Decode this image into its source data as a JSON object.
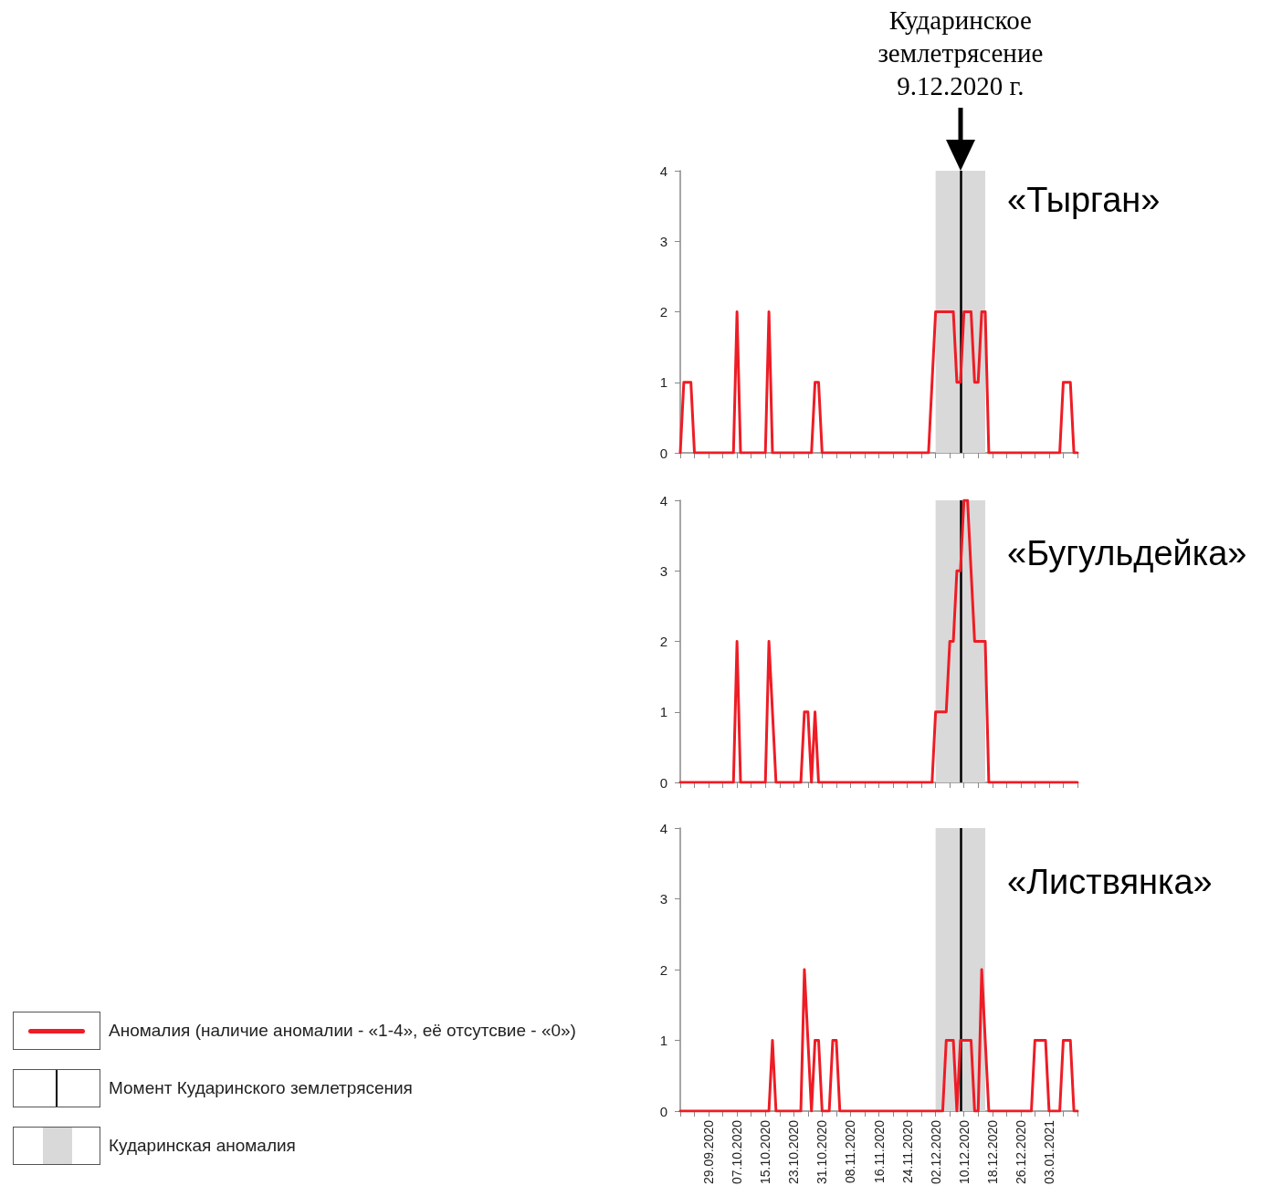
{
  "chart_data": [
    {
      "type": "line",
      "title": "«Тырган»",
      "x": [
        "2020-09-21",
        "2020-09-22",
        "2020-09-23",
        "2020-09-24",
        "2020-09-25",
        "2020-09-26",
        "2020-09-27",
        "2020-09-28",
        "2020-09-29",
        "2020-09-30",
        "2020-10-01",
        "2020-10-02",
        "2020-10-03",
        "2020-10-04",
        "2020-10-05",
        "2020-10-06",
        "2020-10-07",
        "2020-10-08",
        "2020-10-09",
        "2020-10-10",
        "2020-10-11",
        "2020-10-12",
        "2020-10-13",
        "2020-10-14",
        "2020-10-15",
        "2020-10-16",
        "2020-10-17",
        "2020-10-18",
        "2020-10-19",
        "2020-10-20",
        "2020-10-21",
        "2020-10-22",
        "2020-10-23",
        "2020-10-24",
        "2020-10-25",
        "2020-10-26",
        "2020-10-27",
        "2020-10-28",
        "2020-10-29",
        "2020-10-30",
        "2020-10-31",
        "2020-11-01",
        "2020-11-02",
        "2020-11-03",
        "2020-11-04",
        "2020-11-05",
        "2020-11-06",
        "2020-11-07",
        "2020-11-08",
        "2020-11-09",
        "2020-11-10",
        "2020-11-11",
        "2020-11-12",
        "2020-11-13",
        "2020-11-14",
        "2020-11-15",
        "2020-11-16",
        "2020-11-17",
        "2020-11-18",
        "2020-11-19",
        "2020-11-20",
        "2020-11-21",
        "2020-11-22",
        "2020-11-23",
        "2020-11-24",
        "2020-11-25",
        "2020-11-26",
        "2020-11-27",
        "2020-11-28",
        "2020-11-29",
        "2020-11-30",
        "2020-12-01",
        "2020-12-02",
        "2020-12-03",
        "2020-12-04",
        "2020-12-05",
        "2020-12-06",
        "2020-12-07",
        "2020-12-08",
        "2020-12-09",
        "2020-12-10",
        "2020-12-11",
        "2020-12-12",
        "2020-12-13",
        "2020-12-14",
        "2020-12-15",
        "2020-12-16",
        "2020-12-17",
        "2020-12-18",
        "2020-12-19",
        "2020-12-20",
        "2020-12-21",
        "2020-12-22",
        "2020-12-23",
        "2020-12-24",
        "2020-12-25",
        "2020-12-26",
        "2020-12-27",
        "2020-12-28",
        "2020-12-29",
        "2020-12-30",
        "2020-12-31",
        "2021-01-01",
        "2021-01-02",
        "2021-01-03",
        "2021-01-04",
        "2021-01-05",
        "2021-01-06",
        "2021-01-07",
        "2021-01-08",
        "2021-01-09",
        "2021-01-10",
        "2021-01-11"
      ],
      "series": [
        {
          "color": "#ee1c25",
          "values": [
            0,
            1,
            1,
            1,
            0,
            0,
            0,
            0,
            0,
            0,
            0,
            0,
            0,
            0,
            0,
            0,
            2,
            0,
            0,
            0,
            0,
            0,
            0,
            0,
            0,
            2,
            0,
            0,
            0,
            0,
            0,
            0,
            0,
            0,
            0,
            0,
            0,
            0,
            1,
            1,
            0,
            0,
            0,
            0,
            0,
            0,
            0,
            0,
            0,
            0,
            0,
            0,
            0,
            0,
            0,
            0,
            0,
            0,
            0,
            0,
            0,
            0,
            0,
            0,
            0,
            0,
            0,
            0,
            0,
            0,
            0,
            1,
            2,
            2,
            2,
            2,
            2,
            2,
            1,
            1,
            2,
            2,
            2,
            1,
            1,
            2,
            2,
            0,
            0,
            0,
            0,
            0,
            0,
            0,
            0,
            0,
            0,
            0,
            0,
            0,
            0,
            0,
            0,
            0,
            0,
            0,
            0,
            0,
            1,
            1,
            1,
            0,
            0
          ]
        }
      ],
      "xlim": [
        "2020-09-21",
        "2021-01-11"
      ],
      "xticks": [
        {
          "value": "2020-09-21",
          "label": null
        },
        {
          "value": "2020-09-25",
          "label": null
        },
        {
          "value": "2020-09-29",
          "label": null
        },
        {
          "value": "2020-10-03",
          "label": null
        },
        {
          "value": "2020-10-07",
          "label": null
        },
        {
          "value": "2020-10-11",
          "label": null
        },
        {
          "value": "2020-10-15",
          "label": null
        },
        {
          "value": "2020-10-19",
          "label": null
        },
        {
          "value": "2020-10-23",
          "label": null
        },
        {
          "value": "2020-10-27",
          "label": null
        },
        {
          "value": "2020-10-31",
          "label": null
        },
        {
          "value": "2020-11-04",
          "label": null
        },
        {
          "value": "2020-11-08",
          "label": null
        },
        {
          "value": "2020-11-12",
          "label": null
        },
        {
          "value": "2020-11-16",
          "label": null
        },
        {
          "value": "2020-11-20",
          "label": null
        },
        {
          "value": "2020-11-24",
          "label": null
        },
        {
          "value": "2020-11-28",
          "label": null
        },
        {
          "value": "2020-12-02",
          "label": null
        },
        {
          "value": "2020-12-06",
          "label": null
        },
        {
          "value": "2020-12-10",
          "label": null
        },
        {
          "value": "2020-12-14",
          "label": null
        },
        {
          "value": "2020-12-18",
          "label": null
        },
        {
          "value": "2020-12-22",
          "label": null
        },
        {
          "value": "2020-12-26",
          "label": null
        },
        {
          "value": "2020-12-30",
          "label": null
        },
        {
          "value": "2021-01-03",
          "label": null
        },
        {
          "value": "2021-01-07",
          "label": null
        },
        {
          "value": "2021-01-11",
          "label": null
        }
      ],
      "ylim": [
        0,
        4
      ],
      "yticks": [
        0,
        1,
        2,
        3,
        4
      ],
      "tick_labels": "y",
      "grid": false,
      "legend": false,
      "marker": "none",
      "line_style": "solid",
      "bands": [
        {
          "axis": "x",
          "from": "2020-12-02",
          "to": "2020-12-16",
          "color": "#d9d9d9"
        }
      ],
      "ref_lines": [
        {
          "axis": "x",
          "value": "2020-12-09",
          "color": "#000000"
        }
      ],
      "annotations": [
        {
          "text": "Кударинское землетрясение 9.12.2020 г.",
          "x": "2020-12-09",
          "y": 4
        }
      ]
    },
    {
      "type": "line",
      "title": "«Бугульдейка»",
      "x": [
        "2020-09-21",
        "2020-09-22",
        "2020-09-23",
        "2020-09-24",
        "2020-09-25",
        "2020-09-26",
        "2020-09-27",
        "2020-09-28",
        "2020-09-29",
        "2020-09-30",
        "2020-10-01",
        "2020-10-02",
        "2020-10-03",
        "2020-10-04",
        "2020-10-05",
        "2020-10-06",
        "2020-10-07",
        "2020-10-08",
        "2020-10-09",
        "2020-10-10",
        "2020-10-11",
        "2020-10-12",
        "2020-10-13",
        "2020-10-14",
        "2020-10-15",
        "2020-10-16",
        "2020-10-17",
        "2020-10-18",
        "2020-10-19",
        "2020-10-20",
        "2020-10-21",
        "2020-10-22",
        "2020-10-23",
        "2020-10-24",
        "2020-10-25",
        "2020-10-26",
        "2020-10-27",
        "2020-10-28",
        "2020-10-29",
        "2020-10-30",
        "2020-10-31",
        "2020-11-01",
        "2020-11-02",
        "2020-11-03",
        "2020-11-04",
        "2020-11-05",
        "2020-11-06",
        "2020-11-07",
        "2020-11-08",
        "2020-11-09",
        "2020-11-10",
        "2020-11-11",
        "2020-11-12",
        "2020-11-13",
        "2020-11-14",
        "2020-11-15",
        "2020-11-16",
        "2020-11-17",
        "2020-11-18",
        "2020-11-19",
        "2020-11-20",
        "2020-11-21",
        "2020-11-22",
        "2020-11-23",
        "2020-11-24",
        "2020-11-25",
        "2020-11-26",
        "2020-11-27",
        "2020-11-28",
        "2020-11-29",
        "2020-11-30",
        "2020-12-01",
        "2020-12-02",
        "2020-12-03",
        "2020-12-04",
        "2020-12-05",
        "2020-12-06",
        "2020-12-07",
        "2020-12-08",
        "2020-12-09",
        "2020-12-10",
        "2020-12-11",
        "2020-12-12",
        "2020-12-13",
        "2020-12-14",
        "2020-12-15",
        "2020-12-16",
        "2020-12-17",
        "2020-12-18",
        "2020-12-19",
        "2020-12-20",
        "2020-12-21",
        "2020-12-22",
        "2020-12-23",
        "2020-12-24",
        "2020-12-25",
        "2020-12-26",
        "2020-12-27",
        "2020-12-28",
        "2020-12-29",
        "2020-12-30",
        "2020-12-31",
        "2021-01-01",
        "2021-01-02",
        "2021-01-03",
        "2021-01-04",
        "2021-01-05",
        "2021-01-06",
        "2021-01-07",
        "2021-01-08",
        "2021-01-09",
        "2021-01-10",
        "2021-01-11"
      ],
      "series": [
        {
          "color": "#ee1c25",
          "values": [
            0,
            0,
            0,
            0,
            0,
            0,
            0,
            0,
            0,
            0,
            0,
            0,
            0,
            0,
            0,
            0,
            2,
            0,
            0,
            0,
            0,
            0,
            0,
            0,
            0,
            2,
            1,
            0,
            0,
            0,
            0,
            0,
            0,
            0,
            0,
            1,
            1,
            0,
            1,
            0,
            0,
            0,
            0,
            0,
            0,
            0,
            0,
            0,
            0,
            0,
            0,
            0,
            0,
            0,
            0,
            0,
            0,
            0,
            0,
            0,
            0,
            0,
            0,
            0,
            0,
            0,
            0,
            0,
            0,
            0,
            0,
            0,
            1,
            1,
            1,
            1,
            2,
            2,
            3,
            3,
            4,
            4,
            3,
            2,
            2,
            2,
            2,
            0,
            0,
            0,
            0,
            0,
            0,
            0,
            0,
            0,
            0,
            0,
            0,
            0,
            0,
            0,
            0,
            0,
            0,
            0,
            0,
            0,
            0,
            0,
            0,
            0,
            0
          ]
        }
      ],
      "xlim": [
        "2020-09-21",
        "2021-01-11"
      ],
      "xticks": [
        {
          "value": "2020-09-21",
          "label": null
        },
        {
          "value": "2020-09-25",
          "label": null
        },
        {
          "value": "2020-09-29",
          "label": null
        },
        {
          "value": "2020-10-03",
          "label": null
        },
        {
          "value": "2020-10-07",
          "label": null
        },
        {
          "value": "2020-10-11",
          "label": null
        },
        {
          "value": "2020-10-15",
          "label": null
        },
        {
          "value": "2020-10-19",
          "label": null
        },
        {
          "value": "2020-10-23",
          "label": null
        },
        {
          "value": "2020-10-27",
          "label": null
        },
        {
          "value": "2020-10-31",
          "label": null
        },
        {
          "value": "2020-11-04",
          "label": null
        },
        {
          "value": "2020-11-08",
          "label": null
        },
        {
          "value": "2020-11-12",
          "label": null
        },
        {
          "value": "2020-11-16",
          "label": null
        },
        {
          "value": "2020-11-20",
          "label": null
        },
        {
          "value": "2020-11-24",
          "label": null
        },
        {
          "value": "2020-11-28",
          "label": null
        },
        {
          "value": "2020-12-02",
          "label": null
        },
        {
          "value": "2020-12-06",
          "label": null
        },
        {
          "value": "2020-12-10",
          "label": null
        },
        {
          "value": "2020-12-14",
          "label": null
        },
        {
          "value": "2020-12-18",
          "label": null
        },
        {
          "value": "2020-12-22",
          "label": null
        },
        {
          "value": "2020-12-26",
          "label": null
        },
        {
          "value": "2020-12-30",
          "label": null
        },
        {
          "value": "2021-01-03",
          "label": null
        },
        {
          "value": "2021-01-07",
          "label": null
        },
        {
          "value": "2021-01-11",
          "label": null
        }
      ],
      "ylim": [
        0,
        4
      ],
      "yticks": [
        0,
        1,
        2,
        3,
        4
      ],
      "tick_labels": "y",
      "grid": false,
      "legend": false,
      "marker": "none",
      "line_style": "solid",
      "bands": [
        {
          "axis": "x",
          "from": "2020-12-02",
          "to": "2020-12-16",
          "color": "#d9d9d9"
        }
      ],
      "ref_lines": [
        {
          "axis": "x",
          "value": "2020-12-09",
          "color": "#000000"
        }
      ]
    },
    {
      "type": "line",
      "title": "«Листвянка»",
      "x": [
        "2020-09-21",
        "2020-09-22",
        "2020-09-23",
        "2020-09-24",
        "2020-09-25",
        "2020-09-26",
        "2020-09-27",
        "2020-09-28",
        "2020-09-29",
        "2020-09-30",
        "2020-10-01",
        "2020-10-02",
        "2020-10-03",
        "2020-10-04",
        "2020-10-05",
        "2020-10-06",
        "2020-10-07",
        "2020-10-08",
        "2020-10-09",
        "2020-10-10",
        "2020-10-11",
        "2020-10-12",
        "2020-10-13",
        "2020-10-14",
        "2020-10-15",
        "2020-10-16",
        "2020-10-17",
        "2020-10-18",
        "2020-10-19",
        "2020-10-20",
        "2020-10-21",
        "2020-10-22",
        "2020-10-23",
        "2020-10-24",
        "2020-10-25",
        "2020-10-26",
        "2020-10-27",
        "2020-10-28",
        "2020-10-29",
        "2020-10-30",
        "2020-10-31",
        "2020-11-01",
        "2020-11-02",
        "2020-11-03",
        "2020-11-04",
        "2020-11-05",
        "2020-11-06",
        "2020-11-07",
        "2020-11-08",
        "2020-11-09",
        "2020-11-10",
        "2020-11-11",
        "2020-11-12",
        "2020-11-13",
        "2020-11-14",
        "2020-11-15",
        "2020-11-16",
        "2020-11-17",
        "2020-11-18",
        "2020-11-19",
        "2020-11-20",
        "2020-11-21",
        "2020-11-22",
        "2020-11-23",
        "2020-11-24",
        "2020-11-25",
        "2020-11-26",
        "2020-11-27",
        "2020-11-28",
        "2020-11-29",
        "2020-11-30",
        "2020-12-01",
        "2020-12-02",
        "2020-12-03",
        "2020-12-04",
        "2020-12-05",
        "2020-12-06",
        "2020-12-07",
        "2020-12-08",
        "2020-12-09",
        "2020-12-10",
        "2020-12-11",
        "2020-12-12",
        "2020-12-13",
        "2020-12-14",
        "2020-12-15",
        "2020-12-16",
        "2020-12-17",
        "2020-12-18",
        "2020-12-19",
        "2020-12-20",
        "2020-12-21",
        "2020-12-22",
        "2020-12-23",
        "2020-12-24",
        "2020-12-25",
        "2020-12-26",
        "2020-12-27",
        "2020-12-28",
        "2020-12-29",
        "2020-12-30",
        "2020-12-31",
        "2021-01-01",
        "2021-01-02",
        "2021-01-03",
        "2021-01-04",
        "2021-01-05",
        "2021-01-06",
        "2021-01-07",
        "2021-01-08",
        "2021-01-09",
        "2021-01-10",
        "2021-01-11"
      ],
      "series": [
        {
          "name": "Аномалия (наличие аномалии - «1-4», её отсутсвие - «0»)",
          "color": "#ee1c25",
          "values": [
            0,
            0,
            0,
            0,
            0,
            0,
            0,
            0,
            0,
            0,
            0,
            0,
            0,
            0,
            0,
            0,
            0,
            0,
            0,
            0,
            0,
            0,
            0,
            0,
            0,
            0,
            1,
            0,
            0,
            0,
            0,
            0,
            0,
            0,
            0,
            2,
            1,
            0,
            1,
            1,
            0,
            0,
            0,
            1,
            1,
            0,
            0,
            0,
            0,
            0,
            0,
            0,
            0,
            0,
            0,
            0,
            0,
            0,
            0,
            0,
            0,
            0,
            0,
            0,
            0,
            0,
            0,
            0,
            0,
            0,
            0,
            0,
            0,
            0,
            0,
            1,
            1,
            1,
            0,
            1,
            1,
            1,
            1,
            0,
            0,
            2,
            1,
            0,
            0,
            0,
            0,
            0,
            0,
            0,
            0,
            0,
            0,
            0,
            0,
            0,
            1,
            1,
            1,
            1,
            0,
            0,
            0,
            0,
            1,
            1,
            1,
            0,
            0
          ]
        }
      ],
      "xlim": [
        "2020-09-21",
        "2021-01-11"
      ],
      "xticks": [
        {
          "value": "2020-09-21",
          "label": null
        },
        {
          "value": "2020-09-25",
          "label": null
        },
        {
          "value": "2020-09-29",
          "label": "29.09.2020"
        },
        {
          "value": "2020-10-03",
          "label": null
        },
        {
          "value": "2020-10-07",
          "label": "07.10.2020"
        },
        {
          "value": "2020-10-11",
          "label": null
        },
        {
          "value": "2020-10-15",
          "label": "15.10.2020"
        },
        {
          "value": "2020-10-19",
          "label": null
        },
        {
          "value": "2020-10-23",
          "label": "23.10.2020"
        },
        {
          "value": "2020-10-27",
          "label": null
        },
        {
          "value": "2020-10-31",
          "label": "31.10.2020"
        },
        {
          "value": "2020-11-04",
          "label": null
        },
        {
          "value": "2020-11-08",
          "label": "08.11.2020"
        },
        {
          "value": "2020-11-12",
          "label": null
        },
        {
          "value": "2020-11-16",
          "label": "16.11.2020"
        },
        {
          "value": "2020-11-20",
          "label": null
        },
        {
          "value": "2020-11-24",
          "label": "24.11.2020"
        },
        {
          "value": "2020-11-28",
          "label": null
        },
        {
          "value": "2020-12-02",
          "label": "02.12.2020"
        },
        {
          "value": "2020-12-06",
          "label": null
        },
        {
          "value": "2020-12-10",
          "label": "10.12.2020"
        },
        {
          "value": "2020-12-14",
          "label": null
        },
        {
          "value": "2020-12-18",
          "label": "18.12.2020"
        },
        {
          "value": "2020-12-22",
          "label": null
        },
        {
          "value": "2020-12-26",
          "label": "26.12.2020"
        },
        {
          "value": "2020-12-30",
          "label": null
        },
        {
          "value": "2021-01-03",
          "label": "03.01.2021"
        },
        {
          "value": "2021-01-07",
          "label": null
        },
        {
          "value": "2021-01-11",
          "label": null
        }
      ],
      "ylim": [
        0,
        4
      ],
      "yticks": [
        0,
        1,
        2,
        3,
        4
      ],
      "grid": false,
      "legend": "left",
      "marker": "none",
      "line_style": "solid",
      "bands": [
        {
          "axis": "x",
          "from": "2020-12-02",
          "to": "2020-12-16",
          "color": "#d9d9d9",
          "label": "Кударинская аномалия"
        }
      ],
      "ref_lines": [
        {
          "axis": "x",
          "value": "2020-12-09",
          "color": "#000000",
          "label": "Момент Кударинского землетрясения"
        }
      ]
    }
  ]
}
